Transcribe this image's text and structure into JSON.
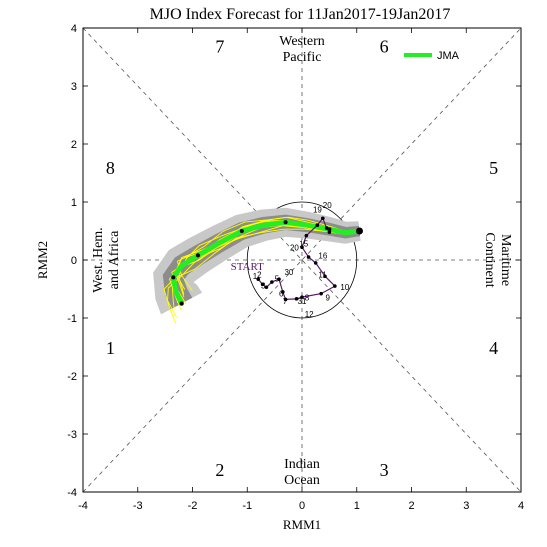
{
  "chart_data": {
    "type": "line",
    "title": "MJO Index Forecast for 11Jan2017-19Jan2017",
    "xlabel": "RMM1",
    "ylabel": "RMM2",
    "xlim": [
      -4,
      4
    ],
    "ylim": [
      -4,
      4
    ],
    "xticks": [
      "-4",
      "-3",
      "-2",
      "-1",
      "0",
      "1",
      "2",
      "3",
      "4"
    ],
    "yticks": [
      "-4",
      "-3",
      "-2",
      "-1",
      "0",
      "1",
      "2",
      "3",
      "4"
    ],
    "phase_numbers": [
      {
        "label": "1",
        "x": -3.5,
        "y": -1.5
      },
      {
        "label": "2",
        "x": -1.5,
        "y": -3.6
      },
      {
        "label": "3",
        "x": 1.5,
        "y": -3.6
      },
      {
        "label": "4",
        "x": 3.5,
        "y": -1.5
      },
      {
        "label": "5",
        "x": 3.5,
        "y": 1.6
      },
      {
        "label": "6",
        "x": 1.5,
        "y": 3.7
      },
      {
        "label": "7",
        "x": -1.5,
        "y": 3.7
      },
      {
        "label": "8",
        "x": -3.5,
        "y": 1.6
      }
    ],
    "regions": {
      "top": [
        "Western",
        "Pacific"
      ],
      "bottom": [
        "Indian",
        "Ocean"
      ],
      "left": [
        "West. Hem.",
        "and Africa"
      ],
      "right": [
        "Maritime",
        "Continent"
      ]
    },
    "legend": {
      "label": "JMA",
      "color": "#22ee22",
      "position": "top-right"
    },
    "start_label": "START",
    "unit_circle_radius": 1,
    "observed": {
      "color": "#5c1a6e",
      "points": [
        {
          "x": -0.8,
          "y": -0.33
        },
        {
          "x": -0.72,
          "y": -0.42
        },
        {
          "x": -0.65,
          "y": -0.47
        },
        {
          "x": -0.55,
          "y": -0.38
        },
        {
          "x": -0.42,
          "y": -0.33
        },
        {
          "x": -0.35,
          "y": -0.55
        },
        {
          "x": -0.3,
          "y": -0.68
        },
        {
          "x": -0.1,
          "y": -0.67
        },
        {
          "x": 0.0,
          "y": -0.64
        },
        {
          "x": 0.35,
          "y": -0.58
        },
        {
          "x": 0.6,
          "y": -0.45
        },
        {
          "x": 0.42,
          "y": -0.28
        },
        {
          "x": 0.25,
          "y": -0.05
        },
        {
          "x": 0.12,
          "y": 0.05
        },
        {
          "x": 0.0,
          "y": 0.22
        },
        {
          "x": 0.08,
          "y": 0.42
        },
        {
          "x": 0.28,
          "y": 0.6
        },
        {
          "x": 0.38,
          "y": 0.72
        },
        {
          "x": 0.45,
          "y": 0.55
        },
        {
          "x": 0.5,
          "y": 0.48
        }
      ],
      "labels": [
        {
          "t": "2",
          "x": -0.82,
          "y": -0.3
        },
        {
          "t": "3",
          "x": -0.75,
          "y": -0.49
        },
        {
          "t": "5",
          "x": -0.5,
          "y": -0.37
        },
        {
          "t": "6",
          "x": -0.42,
          "y": -0.63
        },
        {
          "t": "7",
          "x": -0.35,
          "y": -0.76
        },
        {
          "t": "30",
          "x": -0.32,
          "y": -0.26
        },
        {
          "t": "31",
          "x": -0.08,
          "y": -0.76
        },
        {
          "t": "8",
          "x": 0.05,
          "y": -0.7
        },
        {
          "t": "9",
          "x": 0.43,
          "y": -0.7
        },
        {
          "t": "10",
          "x": 0.7,
          "y": -0.52
        },
        {
          "t": "11",
          "x": 0.3,
          "y": -0.3
        },
        {
          "t": "16",
          "x": 0.3,
          "y": 0.03
        },
        {
          "t": "15",
          "x": -0.05,
          "y": 0.23
        },
        {
          "t": "20",
          "x": -0.22,
          "y": 0.16
        },
        {
          "t": "12",
          "x": 0.05,
          "y": -0.98
        },
        {
          "t": "1",
          "x": -0.9,
          "y": -0.33
        },
        {
          "t": "20",
          "x": 0.38,
          "y": 0.9
        },
        {
          "t": "19",
          "x": 0.2,
          "y": 0.82
        }
      ]
    },
    "forecast_mean": {
      "color": "#22ee22",
      "points": [
        {
          "x": 1.05,
          "y": 0.5
        },
        {
          "x": 0.8,
          "y": 0.47
        },
        {
          "x": 0.5,
          "y": 0.53
        },
        {
          "x": 0.1,
          "y": 0.6
        },
        {
          "x": -0.3,
          "y": 0.65
        },
        {
          "x": -0.7,
          "y": 0.6
        },
        {
          "x": -1.1,
          "y": 0.5
        },
        {
          "x": -1.5,
          "y": 0.3
        },
        {
          "x": -1.9,
          "y": 0.08
        },
        {
          "x": -2.2,
          "y": -0.1
        },
        {
          "x": -2.35,
          "y": -0.3
        },
        {
          "x": -2.3,
          "y": -0.55
        },
        {
          "x": -2.2,
          "y": -0.75
        }
      ]
    },
    "ensemble_color": "#ffff00",
    "spread_colors": [
      "#c8c8c8",
      "#8c8c8c"
    ]
  }
}
